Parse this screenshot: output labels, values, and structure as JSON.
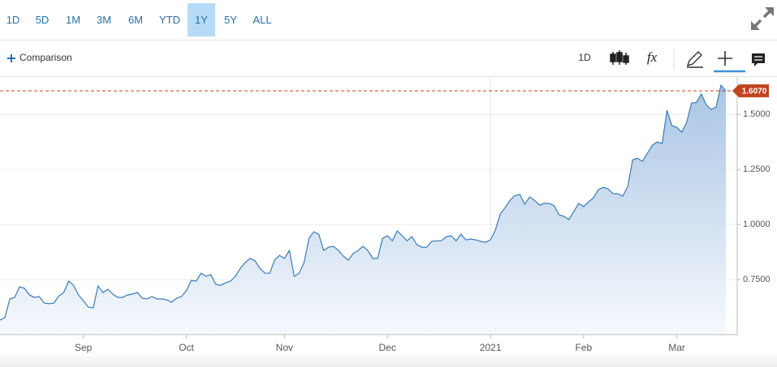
{
  "toolbar": {
    "ranges": [
      "1D",
      "5D",
      "1M",
      "3M",
      "6M",
      "YTD",
      "1Y",
      "5Y",
      "ALL"
    ],
    "selected_range_index": 6,
    "comparison": "Comparison",
    "interval": "1D",
    "studies": "fx"
  },
  "chart_data": {
    "type": "area",
    "categories": [
      null,
      null,
      null,
      null,
      null,
      null,
      null,
      null,
      null,
      null,
      null,
      null,
      null,
      null,
      null,
      null,
      null,
      "Sep",
      null,
      null,
      null,
      null,
      null,
      null,
      null,
      null,
      null,
      null,
      null,
      null,
      null,
      null,
      null,
      null,
      null,
      null,
      null,
      null,
      "Oct",
      null,
      null,
      null,
      null,
      null,
      null,
      null,
      null,
      null,
      null,
      null,
      null,
      null,
      null,
      null,
      null,
      null,
      null,
      null,
      "Nov",
      null,
      null,
      null,
      null,
      null,
      null,
      null,
      null,
      null,
      null,
      null,
      null,
      null,
      null,
      null,
      null,
      null,
      null,
      null,
      null,
      "Dec",
      null,
      null,
      null,
      null,
      null,
      null,
      null,
      null,
      null,
      null,
      null,
      null,
      null,
      null,
      null,
      null,
      null,
      null,
      null,
      null,
      "2021",
      null,
      null,
      null,
      null,
      null,
      null,
      null,
      null,
      null,
      null,
      null,
      null,
      null,
      null,
      null,
      null,
      null,
      null,
      "Feb",
      null,
      null,
      null,
      null,
      null,
      null,
      null,
      null,
      null,
      null,
      null,
      null,
      null,
      null,
      null,
      null,
      null,
      null,
      "Mar",
      null,
      null,
      null,
      null,
      null,
      null,
      null,
      null,
      null,
      null
    ],
    "series": [
      {
        "color": "#3b7bb7",
        "values": [
          0.566,
          0.577,
          0.662,
          0.669,
          0.717,
          0.71,
          0.68,
          0.669,
          0.673,
          0.643,
          0.64,
          0.643,
          0.676,
          0.691,
          0.743,
          0.724,
          0.68,
          0.654,
          0.625,
          0.621,
          0.721,
          0.691,
          0.706,
          0.684,
          0.669,
          0.669,
          0.68,
          0.684,
          0.691,
          0.665,
          0.662,
          0.673,
          0.662,
          0.662,
          0.658,
          0.647,
          0.665,
          0.673,
          0.699,
          0.746,
          0.743,
          0.779,
          0.765,
          0.772,
          0.728,
          0.724,
          0.735,
          0.743,
          0.765,
          0.801,
          0.827,
          0.846,
          0.835,
          0.801,
          0.779,
          0.779,
          0.838,
          0.86,
          0.846,
          0.882,
          0.765,
          0.779,
          0.827,
          0.937,
          0.967,
          0.956,
          0.882,
          0.897,
          0.901,
          0.882,
          0.857,
          0.838,
          0.868,
          0.882,
          0.901,
          0.882,
          0.846,
          0.846,
          0.937,
          0.949,
          0.926,
          0.971,
          0.949,
          0.926,
          0.945,
          0.908,
          0.897,
          0.897,
          0.923,
          0.926,
          0.926,
          0.945,
          0.949,
          0.926,
          0.956,
          0.93,
          0.934,
          0.93,
          0.923,
          0.919,
          0.93,
          0.974,
          1.048,
          1.077,
          1.11,
          1.132,
          1.136,
          1.092,
          1.125,
          1.11,
          1.088,
          1.096,
          1.096,
          1.085,
          1.044,
          1.037,
          1.022,
          1.059,
          1.096,
          1.081,
          1.103,
          1.121,
          1.158,
          1.169,
          1.162,
          1.14,
          1.14,
          1.129,
          1.173,
          1.294,
          1.301,
          1.287,
          1.324,
          1.36,
          1.375,
          1.368,
          1.518,
          1.449,
          1.441,
          1.419,
          1.463,
          1.551,
          1.555,
          1.592,
          1.544,
          1.522,
          1.533,
          1.632,
          1.607
        ]
      }
    ],
    "last_value": 1.607,
    "last_value_label": "1.6070",
    "last_value_color": "#c0441f",
    "ylim": [
      0.5,
      1.67
    ],
    "yticks": [
      {
        "value": 0.75,
        "label": "0.7500"
      },
      {
        "value": 1,
        "label": "1.0000"
      },
      {
        "value": 1.25,
        "label": "1.2500"
      },
      {
        "value": 1.5,
        "label": "1.5000"
      }
    ],
    "grid": true,
    "year_gridline": true,
    "y_axis_side": "right"
  }
}
